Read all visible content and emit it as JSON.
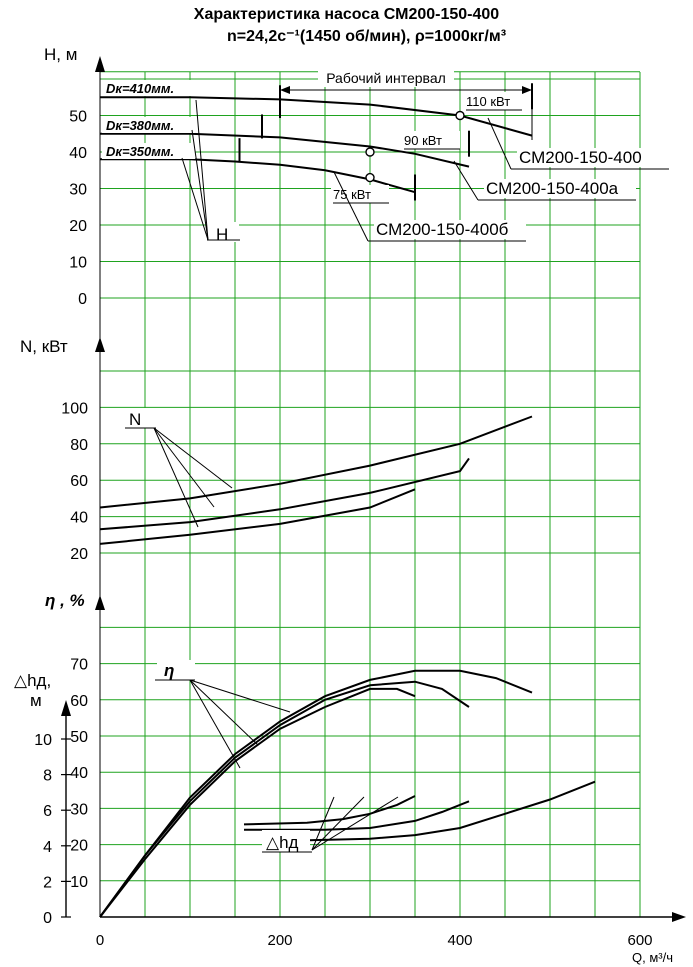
{
  "title": "Характеристика насоса СМ200-150-400",
  "subtitle": "n=24,2c⁻¹(1450 об/мин), ρ=1000кг/м³",
  "chart_data": {
    "type": "line",
    "x": {
      "label": "Q, м³/ч",
      "ticks": [
        0,
        200,
        400,
        600
      ],
      "lim": [
        0,
        650
      ]
    },
    "panels": {
      "head": {
        "axis_label": "H, м",
        "ticks": [
          0,
          10,
          20,
          30,
          40,
          50
        ],
        "series": [
          {
            "name": "Dк=410мм.",
            "pump": "СМ200-150-400",
            "power_label": "110 кВт",
            "points": [
              [
                0,
                55
              ],
              [
                100,
                55
              ],
              [
                200,
                54.4
              ],
              [
                300,
                53
              ],
              [
                400,
                50
              ],
              [
                480,
                44.5
              ]
            ]
          },
          {
            "name": "Dк=380мм.",
            "pump": "СМ200-150-400а",
            "power_label": "90 кВт",
            "points": [
              [
                0,
                45
              ],
              [
                100,
                45
              ],
              [
                200,
                44
              ],
              [
                300,
                41.5
              ],
              [
                350,
                39.5
              ],
              [
                410,
                36
              ]
            ]
          },
          {
            "name": "Dк=350мм.",
            "pump": "СМ200-150-400б",
            "power_label": "75 кВт",
            "points": [
              [
                0,
                38
              ],
              [
                100,
                38
              ],
              [
                150,
                37.4
              ],
              [
                200,
                36.5
              ],
              [
                250,
                35
              ],
              [
                300,
                32.5
              ],
              [
                350,
                29
              ]
            ]
          }
        ],
        "working_interval_label": "Рабочий интервал",
        "working_interval": [
          200,
          480
        ],
        "curve_label": "H",
        "markers": [
          [
            400,
            50
          ],
          [
            300,
            40
          ],
          [
            300,
            33
          ]
        ],
        "bounds": [
          {
            "x": [
              200,
              480
            ],
            "y": [
              55,
              55
            ]
          },
          {
            "x": [
              180,
              410
            ],
            "y": [
              47,
              42
            ]
          },
          {
            "x": [
              155,
              350
            ],
            "y": [
              40.5,
              30
            ]
          }
        ]
      },
      "power": {
        "axis_label": "N, кВт",
        "ticks": [
          20,
          40,
          60,
          80,
          100
        ],
        "curve_label": "N",
        "series": [
          {
            "name": "Dк=410мм.",
            "points": [
              [
                0,
                45
              ],
              [
                100,
                50
              ],
              [
                200,
                58
              ],
              [
                300,
                68
              ],
              [
                400,
                80
              ],
              [
                480,
                95
              ]
            ]
          },
          {
            "name": "Dк=380мм.",
            "points": [
              [
                0,
                33
              ],
              [
                100,
                37
              ],
              [
                200,
                44
              ],
              [
                300,
                53
              ],
              [
                400,
                65
              ],
              [
                410,
                72
              ]
            ]
          },
          {
            "name": "Dк=350мм.",
            "points": [
              [
                0,
                25
              ],
              [
                100,
                30
              ],
              [
                200,
                36
              ],
              [
                300,
                45
              ],
              [
                350,
                55
              ]
            ]
          }
        ]
      },
      "efficiency": {
        "axis_label": "η , %",
        "ticks": [
          10,
          20,
          30,
          40,
          50,
          60,
          70
        ],
        "curve_label": "η",
        "series": [
          {
            "name": "Dк=410мм.",
            "points": [
              [
                0,
                0
              ],
              [
                50,
                17
              ],
              [
                100,
                33
              ],
              [
                150,
                45
              ],
              [
                200,
                54
              ],
              [
                250,
                61
              ],
              [
                300,
                65.5
              ],
              [
                350,
                68
              ],
              [
                400,
                68
              ],
              [
                440,
                66
              ],
              [
                480,
                62
              ]
            ]
          },
          {
            "name": "Dк=380мм.",
            "points": [
              [
                0,
                0
              ],
              [
                50,
                17
              ],
              [
                100,
                32
              ],
              [
                150,
                44
              ],
              [
                200,
                53
              ],
              [
                250,
                60
              ],
              [
                300,
                64
              ],
              [
                350,
                65
              ],
              [
                380,
                63
              ],
              [
                410,
                58
              ]
            ]
          },
          {
            "name": "Dк=350мм.",
            "points": [
              [
                0,
                0
              ],
              [
                50,
                16
              ],
              [
                100,
                31
              ],
              [
                150,
                43
              ],
              [
                200,
                52
              ],
              [
                250,
                58
              ],
              [
                300,
                63
              ],
              [
                330,
                63
              ],
              [
                350,
                61
              ]
            ]
          }
        ]
      },
      "npsh": {
        "axis_label": "△hд, м",
        "ticks": [
          0,
          2,
          4,
          6,
          8,
          10
        ],
        "curve_label": "△hд",
        "series": [
          {
            "name": "Dк=410мм.",
            "points": [
              [
                220,
                4.3
              ],
              [
                300,
                4.4
              ],
              [
                350,
                4.6
              ],
              [
                400,
                5.0
              ],
              [
                450,
                5.8
              ],
              [
                500,
                6.6
              ],
              [
                550,
                7.6
              ]
            ]
          },
          {
            "name": "Dк=380мм.",
            "points": [
              [
                160,
                4.9
              ],
              [
                250,
                4.9
              ],
              [
                300,
                5.0
              ],
              [
                350,
                5.4
              ],
              [
                380,
                5.9
              ],
              [
                410,
                6.5
              ]
            ]
          },
          {
            "name": "Dк=350мм.",
            "points": [
              [
                160,
                5.2
              ],
              [
                230,
                5.3
              ],
              [
                270,
                5.5
              ],
              [
                300,
                5.8
              ],
              [
                330,
                6.3
              ],
              [
                350,
                6.8
              ]
            ]
          }
        ]
      }
    },
    "grid": true
  }
}
